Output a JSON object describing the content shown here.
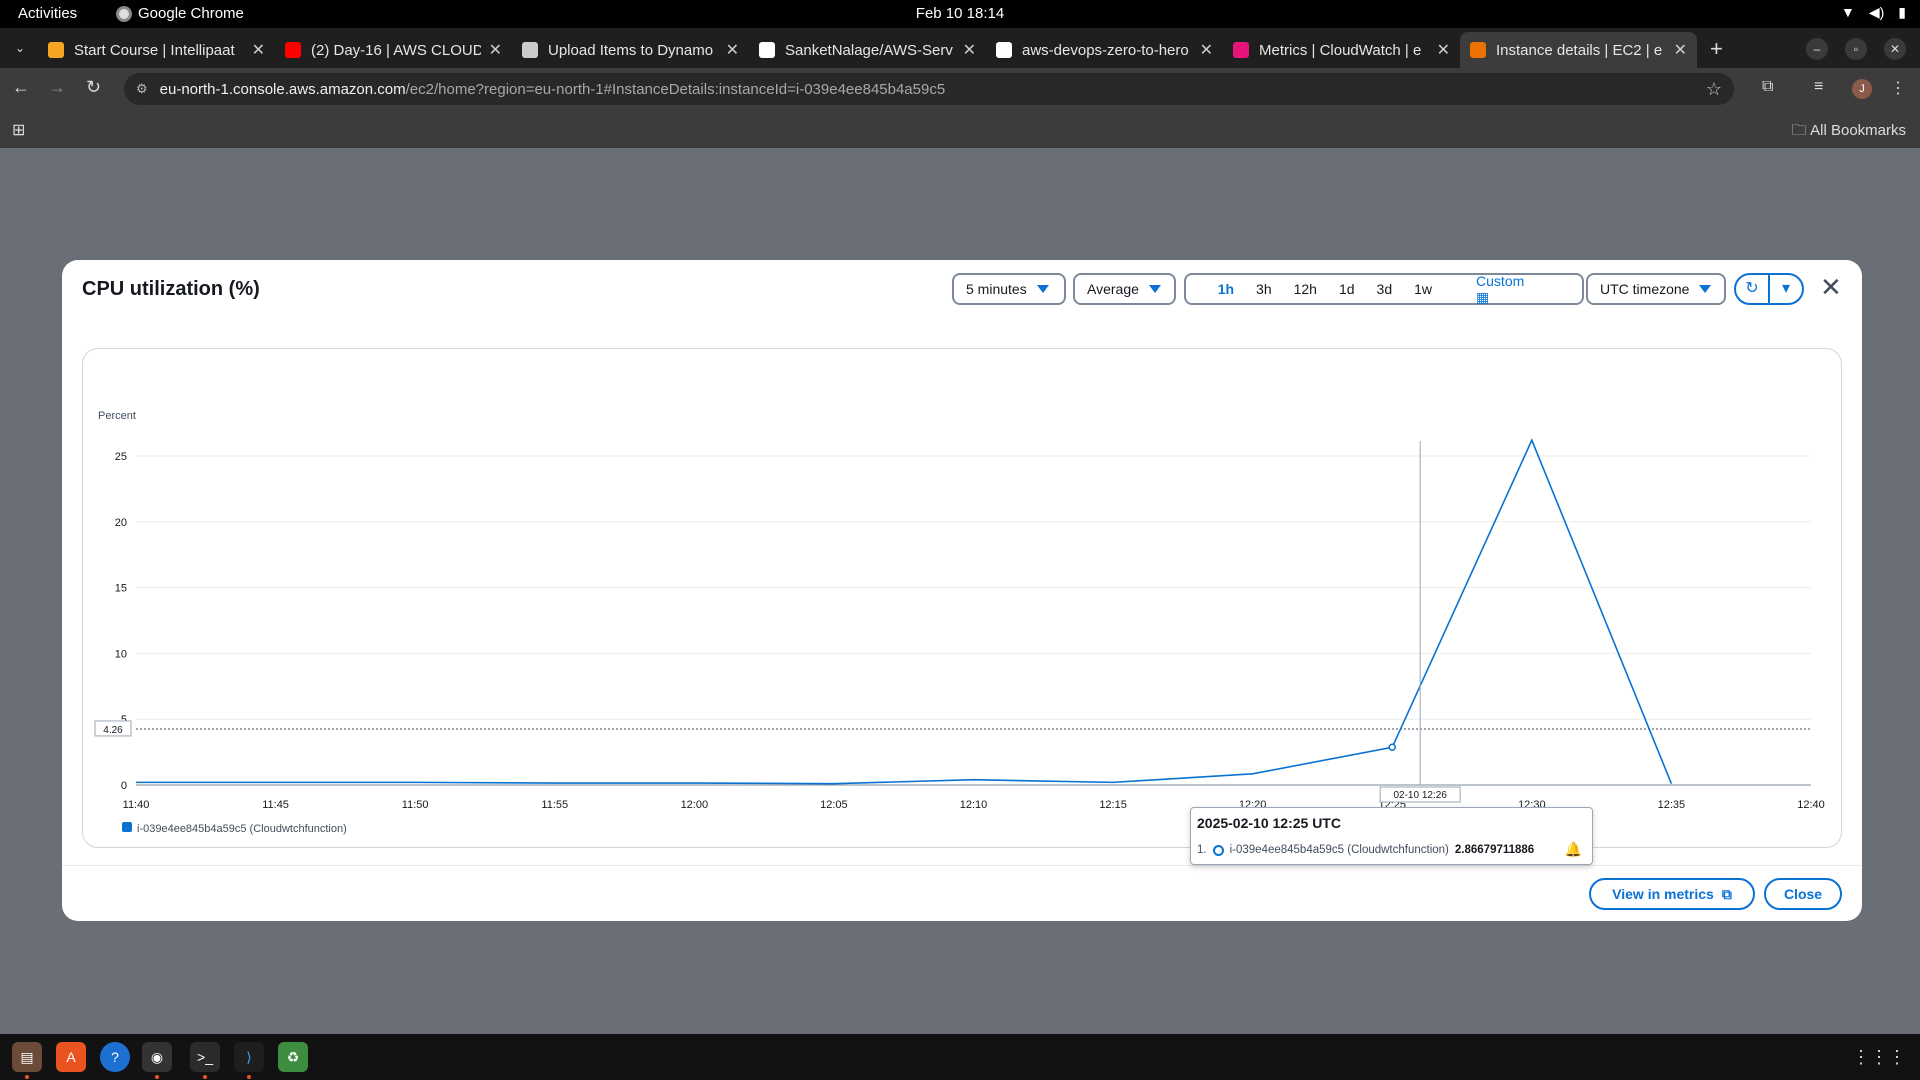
{
  "topbar": {
    "activities": "Activities",
    "app_name": "Google Chrome",
    "clock": "Feb 10  18:14"
  },
  "browser": {
    "tabs": [
      {
        "label": "Start Course | Intellipaat",
        "icon": "intellipaat-icon",
        "color": "#f5a623"
      },
      {
        "label": "(2) Day-16 | AWS CLOUD",
        "icon": "youtube-icon",
        "color": "#ff0000"
      },
      {
        "label": "Upload Items to Dynamo",
        "icon": "openai-icon",
        "color": "#cccccc"
      },
      {
        "label": "SanketNalage/AWS-Serv",
        "icon": "github-icon",
        "color": "#ffffff"
      },
      {
        "label": "aws-devops-zero-to-hero",
        "icon": "github-icon",
        "color": "#ffffff"
      },
      {
        "label": "Metrics | CloudWatch | e",
        "icon": "cloudwatch-icon",
        "color": "#e7157b"
      },
      {
        "label": "Instance details | EC2 | e",
        "icon": "ec2-icon",
        "color": "#ed7100"
      }
    ],
    "url_host": "eu-north-1.console.aws.amazon.com",
    "url_path": "/ec2/home?region=eu-north-1#InstanceDetails:instanceId=i-039e4ee845b4a59c5",
    "all_bookmarks": "All Bookmarks",
    "avatar_letter": "J"
  },
  "modal": {
    "title": "CPU utilization (%)",
    "period": "5 minutes",
    "statistic": "Average",
    "ranges": [
      "1h",
      "3h",
      "12h",
      "1d",
      "3d",
      "1w"
    ],
    "active_range": "1h",
    "custom_label": "Custom",
    "timezone": "UTC timezone",
    "view_in_metrics": "View in metrics",
    "close": "Close"
  },
  "chart_data": {
    "type": "line",
    "ylabel": "Percent",
    "ylim": [
      0,
      25
    ],
    "yticks": [
      0,
      5,
      10,
      15,
      20,
      25
    ],
    "x_ticks": [
      "11:40",
      "11:45",
      "11:50",
      "11:55",
      "12:00",
      "12:05",
      "12:10",
      "12:15",
      "12:20",
      "12:25",
      "12:30",
      "12:35",
      "12:40"
    ],
    "series": [
      {
        "name": "i-039e4ee845b4a59c5 (Cloudwtchfunction)",
        "color": "#0972d3",
        "x": [
          "11:40",
          "11:45",
          "11:50",
          "11:55",
          "12:00",
          "12:05",
          "12:10",
          "12:15",
          "12:20",
          "12:25",
          "12:30",
          "12:35"
        ],
        "values": [
          0.2,
          0.2,
          0.2,
          0.15,
          0.15,
          0.1,
          0.4,
          0.2,
          0.85,
          2.87,
          26.2,
          0.1
        ]
      }
    ],
    "threshold_line": {
      "value": 4.26,
      "label": "4.26"
    },
    "hover": {
      "crosshair_label": "02-10 12:26",
      "title": "2025-02-10 12:25 UTC",
      "index": "1.",
      "series": "i-039e4ee845b4a59c5 (Cloudwtchfunction)",
      "value": "2.86679711886"
    },
    "grid": true,
    "legend": "bottom-left"
  }
}
